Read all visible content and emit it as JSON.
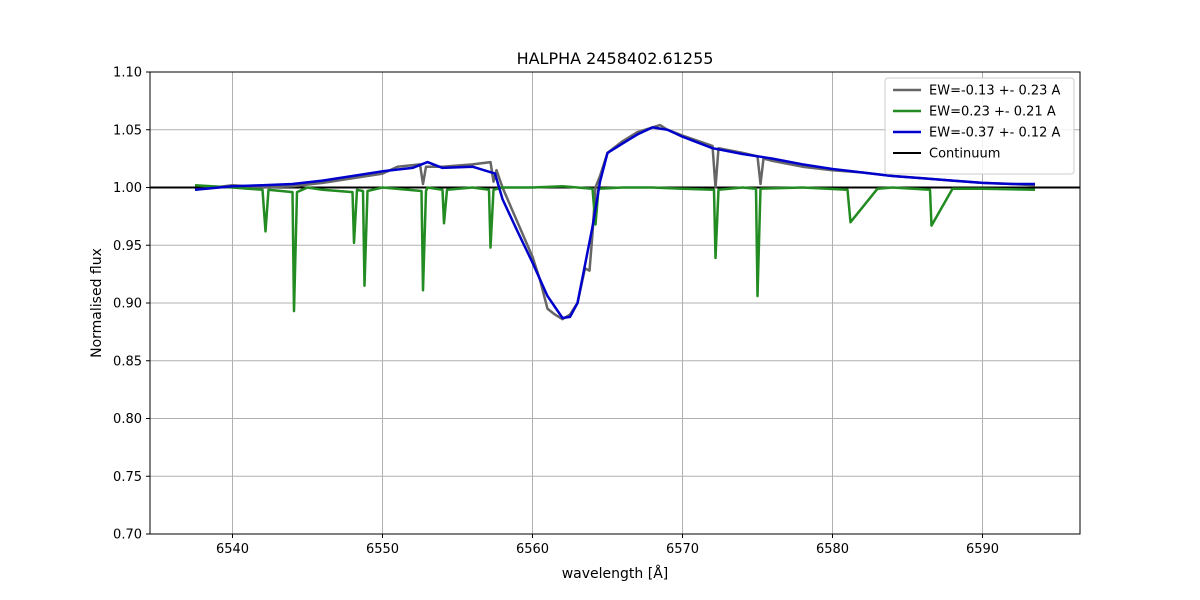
{
  "chart_data": {
    "type": "line",
    "title": "HALPHA 2458402.61255",
    "xlabel": "wavelength [Å]",
    "ylabel": "Normalised flux",
    "xlim": [
      6534.5,
      6596.5
    ],
    "ylim": [
      0.7,
      1.1
    ],
    "xticks": [
      6540,
      6550,
      6560,
      6570,
      6580,
      6590
    ],
    "yticks": [
      0.7,
      0.75,
      0.8,
      0.85,
      0.9,
      0.95,
      1.0,
      1.05,
      1.1
    ],
    "ytick_labels": [
      "0.70",
      "0.75",
      "0.80",
      "0.85",
      "0.90",
      "0.95",
      "1.00",
      "1.05",
      "1.10"
    ],
    "grid": true,
    "legend_position": "top-right",
    "continuum": {
      "name": "Continuum",
      "y": 1.0,
      "color": "#000000"
    },
    "series": [
      {
        "name": "EW=-0.13 +- 0.23 A",
        "color": "#666666",
        "x": [
          6537.5,
          6540,
          6542,
          6544,
          6546,
          6548,
          6550,
          6551,
          6552.5,
          6552.7,
          6552.9,
          6554,
          6556,
          6557.2,
          6557.4,
          6557.6,
          6558,
          6559,
          6560,
          6560.5,
          6561,
          6561.5,
          6562,
          6562.5,
          6563,
          6563.5,
          6563.8,
          6564,
          6564.2,
          6564.5,
          6565,
          6566,
          6567,
          6568,
          6568.5,
          6569,
          6570,
          6572,
          6572.2,
          6572.4,
          6574,
          6575,
          6575.2,
          6575.4,
          6576,
          6578,
          6580,
          6582,
          6584,
          6586,
          6588,
          6590,
          6592,
          6593.5
        ],
        "y": [
          0.998,
          1.002,
          1.0,
          1.001,
          1.004,
          1.008,
          1.012,
          1.018,
          1.02,
          1.003,
          1.018,
          1.018,
          1.02,
          1.022,
          1.005,
          1.015,
          1.0,
          0.97,
          0.94,
          0.92,
          0.895,
          0.89,
          0.886,
          0.89,
          0.9,
          0.93,
          0.928,
          0.96,
          1.0,
          1.01,
          1.03,
          1.04,
          1.048,
          1.052,
          1.054,
          1.05,
          1.045,
          1.036,
          1.0,
          1.034,
          1.03,
          1.027,
          1.003,
          1.025,
          1.023,
          1.018,
          1.015,
          1.013,
          1.01,
          1.008,
          1.006,
          1.004,
          1.003,
          1.002
        ]
      },
      {
        "name": "EW=0.23 +- 0.21 A",
        "color": "#228b22",
        "x": [
          6537.5,
          6540,
          6542,
          6542.2,
          6542.4,
          6544,
          6544.1,
          6544.3,
          6545,
          6546,
          6548,
          6548.1,
          6548.3,
          6548.7,
          6548.8,
          6549,
          6550,
          6552.6,
          6552.7,
          6552.9,
          6553,
          6554,
          6554.1,
          6554.3,
          6556,
          6557.1,
          6557.2,
          6557.4,
          6558,
          6560,
          6562,
          6564,
          6564.2,
          6564.4,
          6566,
          6568,
          6570,
          6572.1,
          6572.2,
          6572.4,
          6574,
          6574.9,
          6575.0,
          6575.2,
          6578,
          6581,
          6581.2,
          6583,
          6584,
          6586.5,
          6586.6,
          6588,
          6590,
          6593.5
        ],
        "y": [
          1.002,
          1.0,
          0.998,
          0.962,
          0.998,
          0.996,
          0.893,
          0.996,
          1.0,
          0.998,
          0.996,
          0.952,
          0.998,
          0.997,
          0.915,
          0.997,
          1.0,
          0.997,
          0.911,
          0.997,
          1.0,
          0.998,
          0.969,
          0.998,
          1.0,
          0.998,
          0.948,
          0.998,
          1.0,
          1.0,
          1.001,
          0.999,
          0.968,
          0.999,
          1.0,
          1.0,
          0.999,
          0.998,
          0.939,
          0.998,
          1.0,
          0.999,
          0.906,
          0.999,
          1.0,
          0.998,
          0.97,
          0.999,
          1.0,
          0.998,
          0.967,
          0.999,
          0.999,
          0.998
        ]
      },
      {
        "name": "EW=-0.37 +- 0.12 A",
        "color": "#0000cd",
        "x": [
          6537.5,
          6540,
          6542,
          6544,
          6546,
          6548,
          6550,
          6552,
          6553,
          6554,
          6556,
          6557.5,
          6558,
          6559,
          6560,
          6561,
          6562,
          6562.5,
          6563,
          6564,
          6564.5,
          6565,
          6566,
          6567,
          6568,
          6569,
          6570,
          6572,
          6574,
          6576,
          6578,
          6580,
          6582,
          6584,
          6586,
          6588,
          6590,
          6592,
          6593.5
        ],
        "y": [
          0.998,
          1.001,
          1.002,
          1.003,
          1.006,
          1.01,
          1.014,
          1.017,
          1.022,
          1.017,
          1.018,
          1.012,
          0.99,
          0.962,
          0.935,
          0.906,
          0.887,
          0.888,
          0.9,
          0.966,
          1.005,
          1.03,
          1.038,
          1.046,
          1.052,
          1.05,
          1.044,
          1.034,
          1.029,
          1.025,
          1.02,
          1.016,
          1.013,
          1.01,
          1.008,
          1.006,
          1.004,
          1.003,
          1.003
        ]
      }
    ]
  }
}
